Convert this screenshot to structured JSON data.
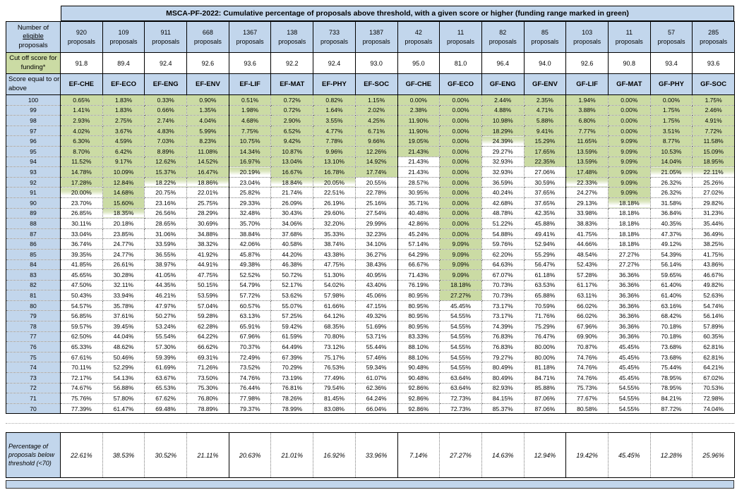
{
  "labels": {
    "eligible_lines": [
      "Number of",
      "eligible",
      "proposals"
    ],
    "cutoff_label": "Cut off score for funding*",
    "score_header": "Score equal to or above",
    "proposals_suffix": "proposals",
    "below_label": "Percentage of proposals below threshold (<70)"
  },
  "colors": {
    "header_blue": "#c2d6ec",
    "funding_green": "#cbdba4",
    "border_black": "#000000",
    "grid_dotted": "#7a7a7a"
  },
  "chart_data": {
    "type": "table",
    "title": "MSCA-PF-2022: Cumulative percentage of proposals above threshold, with a given score or higher (funding range marked in green)",
    "panels": [
      "EF-CHE",
      "EF-ECO",
      "EF-ENG",
      "EF-ENV",
      "EF-LIF",
      "EF-MAT",
      "EF-PHY",
      "EF-SOC",
      "GF-CHE",
      "GF-ECO",
      "GF-ENG",
      "GF-ENV",
      "GF-LIF",
      "GF-MAT",
      "GF-PHY",
      "GF-SOC"
    ],
    "eligible_proposals": [
      920,
      109,
      911,
      668,
      1367,
      138,
      733,
      1387,
      42,
      11,
      82,
      85,
      103,
      11,
      57,
      285
    ],
    "cutoff_scores": [
      91.8,
      89.4,
      92.4,
      92.6,
      93.6,
      92.2,
      92.4,
      93.0,
      95.0,
      81.0,
      96.4,
      94.0,
      92.6,
      90.8,
      93.4,
      93.6
    ],
    "scores": [
      100,
      99,
      98,
      97,
      96,
      95,
      94,
      93,
      92,
      91,
      90,
      89,
      88,
      87,
      86,
      85,
      84,
      83,
      82,
      81,
      80,
      79,
      78,
      77,
      76,
      75,
      74,
      73,
      72,
      71,
      70
    ],
    "cumulative_percent_rows": [
      [
        0.65,
        1.83,
        0.33,
        0.9,
        0.51,
        0.72,
        0.82,
        1.15,
        0.0,
        0.0,
        2.44,
        2.35,
        1.94,
        0.0,
        0.0,
        1.75
      ],
      [
        1.41,
        1.83,
        0.66,
        1.35,
        1.98,
        0.72,
        1.64,
        2.02,
        2.38,
        0.0,
        4.88,
        4.71,
        3.88,
        0.0,
        1.75,
        2.46
      ],
      [
        2.93,
        2.75,
        2.74,
        4.04,
        4.68,
        2.9,
        3.55,
        4.25,
        11.9,
        0.0,
        10.98,
        5.88,
        6.8,
        0.0,
        1.75,
        4.91
      ],
      [
        4.02,
        3.67,
        4.83,
        5.99,
        7.75,
        6.52,
        4.77,
        6.71,
        11.9,
        0.0,
        18.29,
        9.41,
        7.77,
        0.0,
        3.51,
        7.72
      ],
      [
        6.3,
        4.59,
        7.03,
        8.23,
        10.75,
        9.42,
        7.78,
        9.66,
        19.05,
        0.0,
        24.39,
        15.29,
        11.65,
        9.09,
        8.77,
        11.58
      ],
      [
        8.7,
        6.42,
        8.89,
        11.08,
        14.34,
        10.87,
        9.96,
        12.26,
        21.43,
        0.0,
        29.27,
        17.65,
        13.59,
        9.09,
        10.53,
        15.09
      ],
      [
        11.52,
        9.17,
        12.62,
        14.52,
        16.97,
        13.04,
        13.1,
        14.92,
        21.43,
        0.0,
        32.93,
        22.35,
        13.59,
        9.09,
        14.04,
        18.95
      ],
      [
        14.78,
        10.09,
        15.37,
        16.47,
        20.19,
        16.67,
        16.78,
        17.74,
        21.43,
        0.0,
        32.93,
        27.06,
        17.48,
        9.09,
        21.05,
        22.11
      ],
      [
        17.28,
        12.84,
        18.22,
        18.86,
        23.04,
        18.84,
        20.05,
        20.55,
        28.57,
        0.0,
        36.59,
        30.59,
        22.33,
        9.09,
        26.32,
        25.26
      ],
      [
        20.0,
        14.68,
        20.75,
        22.01,
        25.82,
        21.74,
        22.51,
        22.78,
        30.95,
        0.0,
        40.24,
        37.65,
        24.27,
        9.09,
        26.32,
        27.02
      ],
      [
        23.7,
        15.6,
        23.16,
        25.75,
        29.33,
        26.09,
        26.19,
        25.16,
        35.71,
        0.0,
        42.68,
        37.65,
        29.13,
        18.18,
        31.58,
        29.82
      ],
      [
        26.85,
        18.35,
        26.56,
        28.29,
        32.48,
        30.43,
        29.6,
        27.54,
        40.48,
        0.0,
        48.78,
        42.35,
        33.98,
        18.18,
        36.84,
        31.23
      ],
      [
        30.11,
        20.18,
        28.65,
        30.69,
        35.7,
        34.06,
        32.2,
        29.99,
        42.86,
        0.0,
        51.22,
        45.88,
        38.83,
        18.18,
        40.35,
        35.44
      ],
      [
        33.04,
        23.85,
        31.06,
        34.88,
        38.84,
        37.68,
        35.33,
        32.23,
        45.24,
        0.0,
        54.88,
        49.41,
        41.75,
        18.18,
        47.37,
        36.49
      ],
      [
        36.74,
        24.77,
        33.59,
        38.32,
        42.06,
        40.58,
        38.74,
        34.1,
        57.14,
        9.09,
        59.76,
        52.94,
        44.66,
        18.18,
        49.12,
        38.25
      ],
      [
        39.35,
        24.77,
        36.55,
        41.92,
        45.87,
        44.2,
        43.38,
        36.27,
        64.29,
        9.09,
        62.2,
        55.29,
        48.54,
        27.27,
        54.39,
        41.75
      ],
      [
        41.85,
        26.61,
        38.97,
        44.91,
        49.38,
        46.38,
        47.75,
        38.43,
        66.67,
        9.09,
        64.63,
        56.47,
        52.43,
        27.27,
        56.14,
        43.86
      ],
      [
        45.65,
        30.28,
        41.05,
        47.75,
        52.52,
        50.72,
        51.3,
        40.95,
        71.43,
        9.09,
        67.07,
        61.18,
        57.28,
        36.36,
        59.65,
        46.67
      ],
      [
        47.5,
        32.11,
        44.35,
        50.15,
        54.79,
        52.17,
        54.02,
        43.4,
        76.19,
        18.18,
        70.73,
        63.53,
        61.17,
        36.36,
        61.4,
        49.82
      ],
      [
        50.43,
        33.94,
        46.21,
        53.59,
        57.72,
        53.62,
        57.98,
        45.06,
        80.95,
        27.27,
        70.73,
        65.88,
        63.11,
        36.36,
        61.4,
        52.63
      ],
      [
        54.57,
        35.78,
        47.97,
        57.04,
        60.57,
        55.07,
        61.66,
        47.15,
        80.95,
        45.45,
        73.17,
        70.59,
        66.02,
        36.36,
        63.16,
        54.74
      ],
      [
        56.85,
        37.61,
        50.27,
        59.28,
        63.13,
        57.25,
        64.12,
        49.32,
        80.95,
        54.55,
        73.17,
        71.76,
        66.02,
        36.36,
        68.42,
        56.14
      ],
      [
        59.57,
        39.45,
        53.24,
        62.28,
        65.91,
        59.42,
        68.35,
        51.69,
        80.95,
        54.55,
        74.39,
        75.29,
        67.96,
        36.36,
        70.18,
        57.89
      ],
      [
        62.5,
        44.04,
        55.54,
        64.22,
        67.96,
        61.59,
        70.8,
        53.71,
        83.33,
        54.55,
        76.83,
        76.47,
        69.9,
        36.36,
        70.18,
        60.35
      ],
      [
        65.33,
        48.62,
        57.3,
        66.62,
        70.37,
        64.49,
        73.12,
        55.44,
        88.1,
        54.55,
        76.83,
        80.0,
        70.87,
        45.45,
        73.68,
        62.81
      ],
      [
        67.61,
        50.46,
        59.39,
        69.31,
        72.49,
        67.39,
        75.17,
        57.46,
        88.1,
        54.55,
        79.27,
        80.0,
        74.76,
        45.45,
        73.68,
        62.81
      ],
      [
        70.11,
        52.29,
        61.69,
        71.26,
        73.52,
        70.29,
        76.53,
        59.34,
        90.48,
        54.55,
        80.49,
        81.18,
        74.76,
        45.45,
        75.44,
        64.21
      ],
      [
        72.17,
        54.13,
        63.67,
        73.5,
        74.76,
        73.19,
        77.49,
        61.07,
        90.48,
        63.64,
        80.49,
        84.71,
        74.76,
        45.45,
        78.95,
        67.02
      ],
      [
        74.67,
        56.88,
        65.53,
        75.3,
        76.44,
        76.81,
        79.54,
        62.36,
        92.86,
        63.64,
        82.93,
        85.88,
        75.73,
        54.55,
        78.95,
        70.53
      ],
      [
        75.76,
        57.8,
        67.62,
        76.8,
        77.98,
        78.26,
        81.45,
        64.24,
        92.86,
        72.73,
        84.15,
        87.06,
        77.67,
        54.55,
        84.21,
        72.98
      ],
      [
        77.39,
        61.47,
        69.48,
        78.89,
        79.37,
        78.99,
        83.08,
        66.04,
        92.86,
        72.73,
        85.37,
        87.06,
        80.58,
        54.55,
        87.72,
        74.04
      ]
    ],
    "below_threshold_percent": [
      22.61,
      38.53,
      30.52,
      21.11,
      20.63,
      21.01,
      16.92,
      33.96,
      7.14,
      27.27,
      14.63,
      12.94,
      19.42,
      45.45,
      12.28,
      25.96
    ]
  }
}
